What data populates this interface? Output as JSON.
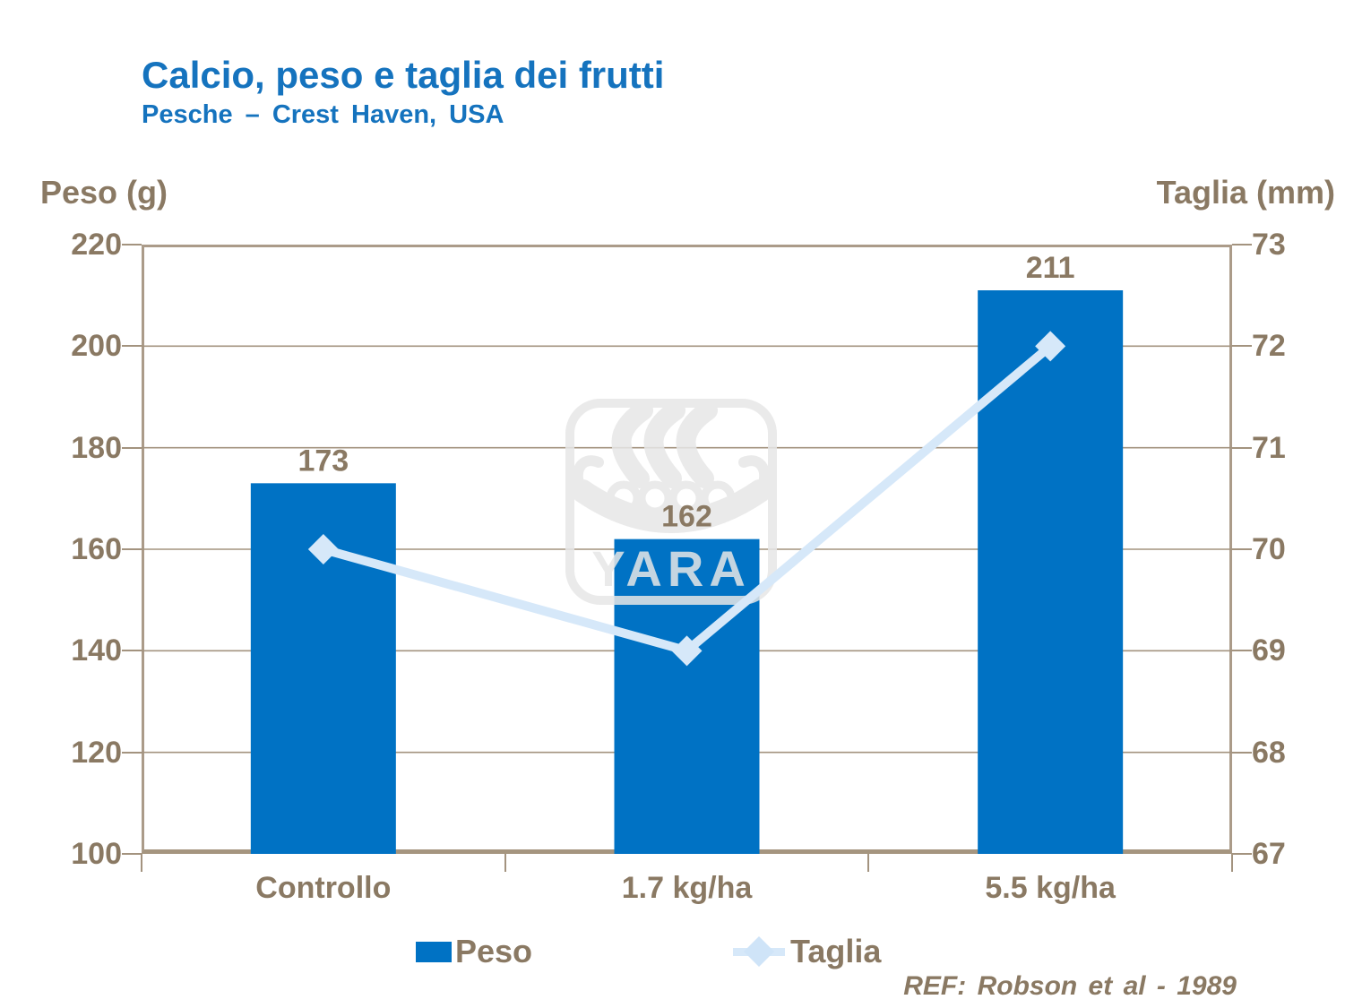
{
  "header": {
    "title": "Calcio, peso e taglia dei frutti",
    "subtitle": "Pesche – Crest Haven, USA"
  },
  "chart_data": {
    "type": "bar+line",
    "categories": [
      "Controllo",
      "1.7 kg/ha",
      "5.5 kg/ha"
    ],
    "series": [
      {
        "name": "Peso",
        "type": "bar",
        "axis": "left",
        "values": [
          173,
          162,
          211
        ],
        "color": "#0072C4"
      },
      {
        "name": "Taglia",
        "type": "line",
        "axis": "right",
        "values": [
          70,
          69,
          72
        ],
        "color": "#D6E8F9",
        "marker": "diamond"
      }
    ],
    "left_axis": {
      "label": "Peso (g)",
      "min": 100,
      "max": 220,
      "ticks": [
        220,
        200,
        180,
        160,
        140,
        120,
        100
      ]
    },
    "right_axis": {
      "label": "Taglia (mm)",
      "min": 67,
      "max": 73,
      "ticks": [
        73,
        72,
        71,
        70,
        69,
        68,
        67
      ]
    },
    "data_labels": [
      173,
      162,
      211
    ],
    "legend": {
      "items": [
        {
          "label": "Peso"
        },
        {
          "label": "Taglia"
        }
      ],
      "position": "bottom"
    },
    "grid": "horizontal",
    "watermark": "YARA",
    "reference": "REF:  Robson et al - 1989",
    "colors": {
      "title": "#1573BE",
      "text": "#8A7963",
      "bar": "#0072C4",
      "line": "#D6E8F9",
      "gridline": "#A3937F",
      "frame": "#AB9B89",
      "watermark": "#E7E7E7"
    }
  }
}
